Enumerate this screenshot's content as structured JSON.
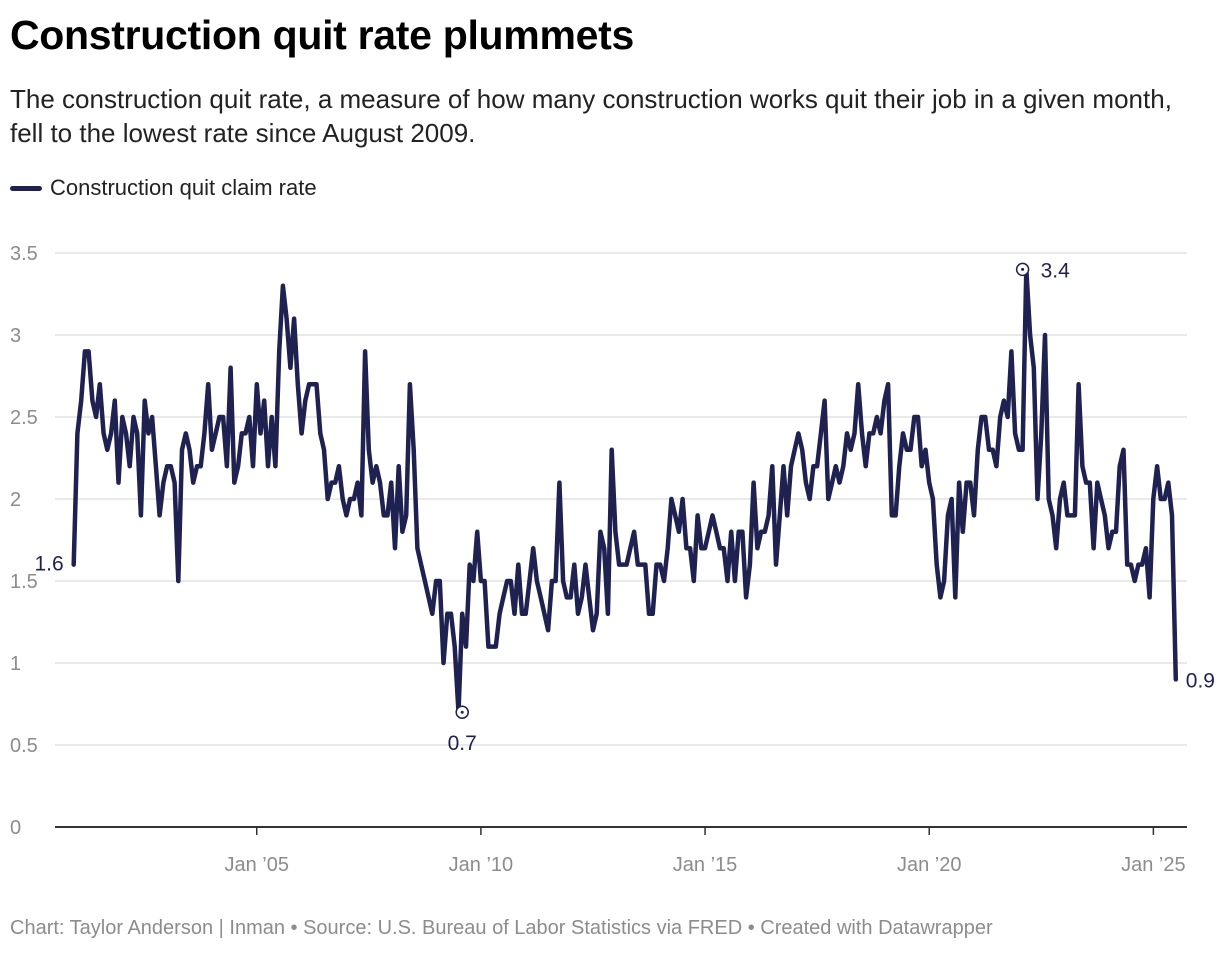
{
  "title": "Construction quit rate plummets",
  "subtitle": "The construction quit rate, a measure of how many construction works quit their job in a given month, fell to the lowest rate since August 2009.",
  "footer": "Chart: Taylor Anderson | Inman • Source: U.S. Bureau of Labor Statistics via FRED • Created with Datawrapper",
  "colors": {
    "line": "#1f2150",
    "grid": "#e2e2e2",
    "axis": "#333333",
    "tick_text": "#8c8c8c"
  },
  "chart_data": {
    "type": "line",
    "title": "Construction quit rate plummets",
    "xlabel": "",
    "ylabel": "",
    "ylim": [
      0,
      3.5
    ],
    "xlim": [
      2000.5,
      2025.75
    ],
    "yticks": [
      0,
      0.5,
      1,
      1.5,
      2,
      2.5,
      3,
      3.5
    ],
    "ytick_labels": [
      "0",
      "0.5",
      "1",
      "1.5",
      "2",
      "2.5",
      "3",
      "3.5"
    ],
    "xticks": [
      2005,
      2010,
      2015,
      2020,
      2025
    ],
    "xtick_labels": [
      "Jan ’05",
      "Jan ’10",
      "Jan ’15",
      "Jan ’20",
      "Jan ’25"
    ],
    "legend": "top-left",
    "series": [
      {
        "name": "Construction quit claim rate",
        "x_start": 2000.917,
        "x_step": 0.08333,
        "values": [
          1.6,
          2.4,
          2.6,
          2.9,
          2.9,
          2.6,
          2.5,
          2.7,
          2.4,
          2.3,
          2.4,
          2.6,
          2.1,
          2.5,
          2.4,
          2.2,
          2.5,
          2.4,
          1.9,
          2.6,
          2.4,
          2.5,
          2.2,
          1.9,
          2.1,
          2.2,
          2.2,
          2.1,
          1.5,
          2.3,
          2.4,
          2.3,
          2.1,
          2.2,
          2.2,
          2.4,
          2.7,
          2.3,
          2.4,
          2.5,
          2.5,
          2.2,
          2.8,
          2.1,
          2.2,
          2.4,
          2.4,
          2.5,
          2.2,
          2.7,
          2.4,
          2.6,
          2.2,
          2.5,
          2.2,
          2.9,
          3.3,
          3.1,
          2.8,
          3.1,
          2.7,
          2.4,
          2.6,
          2.7,
          2.7,
          2.7,
          2.4,
          2.3,
          2.0,
          2.1,
          2.1,
          2.2,
          2.0,
          1.9,
          2.0,
          2.0,
          2.1,
          1.9,
          2.9,
          2.3,
          2.1,
          2.2,
          2.1,
          1.9,
          1.9,
          2.1,
          1.7,
          2.2,
          1.8,
          1.9,
          2.7,
          2.3,
          1.7,
          1.6,
          1.5,
          1.4,
          1.3,
          1.5,
          1.5,
          1.0,
          1.3,
          1.3,
          1.1,
          0.7,
          1.3,
          1.1,
          1.6,
          1.5,
          1.8,
          1.5,
          1.5,
          1.1,
          1.1,
          1.1,
          1.3,
          1.4,
          1.5,
          1.5,
          1.3,
          1.6,
          1.3,
          1.3,
          1.5,
          1.7,
          1.5,
          1.4,
          1.3,
          1.2,
          1.5,
          1.5,
          2.1,
          1.5,
          1.4,
          1.4,
          1.6,
          1.3,
          1.4,
          1.6,
          1.4,
          1.2,
          1.3,
          1.8,
          1.7,
          1.3,
          2.3,
          1.8,
          1.6,
          1.6,
          1.6,
          1.7,
          1.8,
          1.6,
          1.6,
          1.6,
          1.3,
          1.3,
          1.6,
          1.6,
          1.5,
          1.7,
          2.0,
          1.9,
          1.8,
          2.0,
          1.7,
          1.7,
          1.5,
          1.9,
          1.7,
          1.7,
          1.8,
          1.9,
          1.8,
          1.7,
          1.7,
          1.5,
          1.8,
          1.5,
          1.8,
          1.8,
          1.4,
          1.6,
          2.1,
          1.7,
          1.8,
          1.8,
          1.9,
          2.2,
          1.6,
          1.9,
          2.2,
          1.9,
          2.2,
          2.3,
          2.4,
          2.3,
          2.1,
          2.0,
          2.2,
          2.2,
          2.4,
          2.6,
          2.0,
          2.1,
          2.2,
          2.1,
          2.2,
          2.4,
          2.3,
          2.4,
          2.7,
          2.4,
          2.2,
          2.4,
          2.4,
          2.5,
          2.4,
          2.6,
          2.7,
          1.9,
          1.9,
          2.2,
          2.4,
          2.3,
          2.3,
          2.5,
          2.5,
          2.2,
          2.3,
          2.1,
          2.0,
          1.6,
          1.4,
          1.5,
          1.9,
          2.0,
          1.4,
          2.1,
          1.8,
          2.1,
          2.1,
          1.9,
          2.3,
          2.5,
          2.5,
          2.3,
          2.3,
          2.2,
          2.5,
          2.6,
          2.5,
          2.9,
          2.4,
          2.3,
          2.3,
          3.4,
          3.0,
          2.8,
          2.0,
          2.4,
          3.0,
          2.0,
          1.9,
          1.7,
          2.0,
          2.1,
          1.9,
          1.9,
          1.9,
          2.7,
          2.2,
          2.1,
          2.1,
          1.7,
          2.1,
          2.0,
          1.9,
          1.7,
          1.8,
          1.8,
          2.2,
          2.3,
          1.6,
          1.6,
          1.5,
          1.6,
          1.6,
          1.7,
          1.4,
          2.0,
          2.2,
          2.0,
          2.0,
          2.1,
          1.9,
          0.9
        ]
      }
    ],
    "annotations": [
      {
        "label": "1.6",
        "x": 2000.917,
        "y": 1.6,
        "circle": false
      },
      {
        "label": "0.7",
        "x": 2009.583,
        "y": 0.7,
        "circle": true
      },
      {
        "label": "3.4",
        "x": 2022.083,
        "y": 3.4,
        "circle": true
      },
      {
        "label": "0.9",
        "x": 2025.5,
        "y": 0.9,
        "circle": false
      }
    ]
  }
}
